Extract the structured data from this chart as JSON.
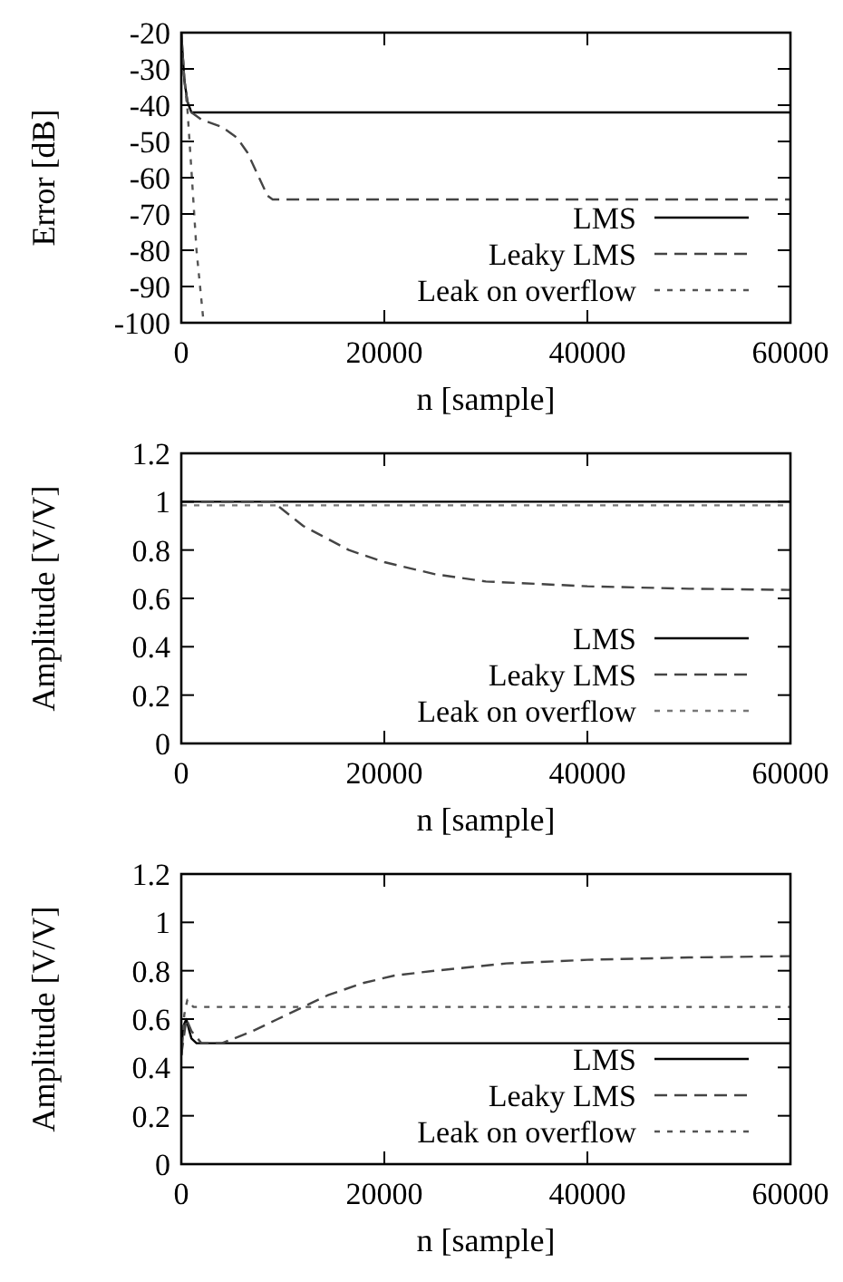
{
  "chart_data": [
    {
      "type": "line",
      "xlabel": "n [sample]",
      "ylabel": "Error [dB]",
      "xlim": [
        0,
        60000
      ],
      "xticks": [
        0,
        20000,
        40000,
        60000
      ],
      "ylim": [
        -100,
        -20
      ],
      "yticks": [
        -100,
        -90,
        -80,
        -70,
        -60,
        -50,
        -40,
        -30,
        -20
      ],
      "legend": "bottom right",
      "grid": false,
      "series": [
        {
          "name": "LMS",
          "color": "#000000",
          "line_style": "solid",
          "x": [
            0,
            300,
            600,
            1000,
            2000,
            60000
          ],
          "values": [
            -20,
            -33,
            -39,
            -42,
            -42,
            -42
          ]
        },
        {
          "name": "Leaky LMS",
          "color": "#444444",
          "line_style": "dashed",
          "x": [
            0,
            300,
            600,
            1000,
            2000,
            4000,
            5500,
            6500,
            7500,
            8500,
            9000,
            60000
          ],
          "values": [
            -20,
            -33,
            -39,
            -42,
            -44,
            -46,
            -49,
            -53,
            -59,
            -65,
            -66,
            -66
          ]
        },
        {
          "name": "Leak on overflow",
          "color": "#555555",
          "line_style": "dotted",
          "x": [
            0,
            300,
            600,
            1000,
            1500,
            2200
          ],
          "values": [
            -20,
            -33,
            -41,
            -58,
            -80,
            -100
          ]
        }
      ]
    },
    {
      "type": "line",
      "xlabel": "n [sample]",
      "ylabel": "Amplitude [V/V]",
      "xlim": [
        0,
        60000
      ],
      "xticks": [
        0,
        20000,
        40000,
        60000
      ],
      "ylim": [
        0,
        1.2
      ],
      "yticks": [
        0,
        0.2,
        0.4,
        0.6,
        0.8,
        1,
        1.2
      ],
      "legend": "bottom right",
      "grid": false,
      "series": [
        {
          "name": "LMS",
          "color": "#000000",
          "line_style": "solid",
          "x": [
            0,
            60000
          ],
          "values": [
            1,
            1
          ]
        },
        {
          "name": "Leaky LMS",
          "color": "#444444",
          "line_style": "dashed",
          "x": [
            0,
            9000,
            12000,
            16500,
            20000,
            25000,
            30000,
            40000,
            50000,
            60000
          ],
          "values": [
            1,
            1,
            0.9,
            0.8,
            0.75,
            0.7,
            0.67,
            0.65,
            0.64,
            0.635
          ]
        },
        {
          "name": "Leak on overflow",
          "color": "#777777",
          "line_style": "dotted",
          "x": [
            0,
            60000
          ],
          "values": [
            0.985,
            0.985
          ]
        }
      ]
    },
    {
      "type": "line",
      "xlabel": "n [sample]",
      "ylabel": "Amplitude [V/V]",
      "xlim": [
        0,
        60000
      ],
      "xticks": [
        0,
        20000,
        40000,
        60000
      ],
      "ylim": [
        0,
        1.2
      ],
      "yticks": [
        0,
        0.2,
        0.4,
        0.6,
        0.8,
        1,
        1.2
      ],
      "legend": "bottom right",
      "grid": false,
      "series": [
        {
          "name": "LMS",
          "color": "#000000",
          "line_style": "solid",
          "x": [
            0,
            150,
            300,
            500,
            800,
            1000,
            1500,
            60000
          ],
          "values": [
            0.45,
            0.55,
            0.58,
            0.6,
            0.55,
            0.52,
            0.5,
            0.5
          ]
        },
        {
          "name": "Leaky LMS",
          "color": "#444444",
          "line_style": "dashed",
          "x": [
            0,
            500,
            1000,
            2000,
            4000,
            7000,
            9500,
            12000,
            14500,
            18000,
            21000,
            25000,
            32000,
            40000,
            50000,
            60000
          ],
          "values": [
            0.45,
            0.6,
            0.55,
            0.5,
            0.5,
            0.55,
            0.6,
            0.65,
            0.7,
            0.75,
            0.78,
            0.8,
            0.83,
            0.845,
            0.855,
            0.86
          ]
        },
        {
          "name": "Leak on overflow",
          "color": "#555555",
          "line_style": "dotted",
          "x": [
            0,
            300,
            600,
            1200,
            60000
          ],
          "values": [
            0.45,
            0.62,
            0.68,
            0.65,
            0.65
          ]
        }
      ]
    }
  ]
}
